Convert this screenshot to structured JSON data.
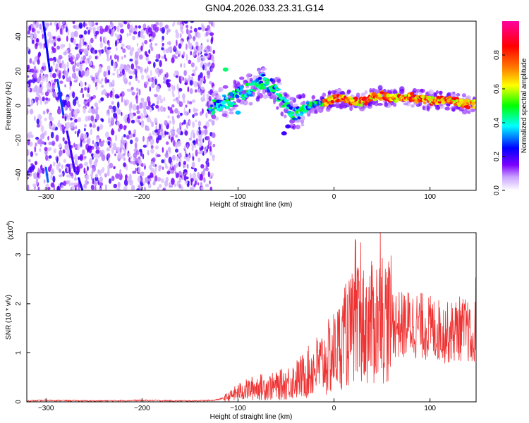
{
  "figure_title": "GN04.2026.033.23.31.G14",
  "chart_data": [
    {
      "type": "heatmap",
      "xlabel": "Height of straight line (km)",
      "ylabel": "Frequency (Hz)",
      "xlim": [
        -320,
        148
      ],
      "ylim": [
        -49,
        49
      ],
      "xticks": [
        -300,
        -200,
        -100,
        0,
        100
      ],
      "yticks": [
        -40,
        -20,
        0,
        20,
        40
      ],
      "grid": false,
      "noise_region_x": [
        -320,
        -125
      ],
      "main_trace": {
        "x": [
          -130,
          -120,
          -110,
          -100,
          -90,
          -80,
          -75,
          -70,
          -65,
          -60,
          -55,
          -50,
          -45,
          -40,
          -35,
          -30,
          -20,
          -10,
          0,
          10,
          20,
          30,
          40,
          50,
          60,
          70,
          80,
          90,
          100,
          110,
          120,
          130,
          140,
          148
        ],
        "y": [
          -2,
          1,
          3,
          6,
          9,
          12,
          14,
          14,
          11,
          8,
          4,
          0,
          -3,
          -4,
          -3,
          -1,
          1,
          2,
          4,
          4,
          3,
          2,
          5,
          6,
          4,
          5,
          5,
          4,
          3,
          3,
          3,
          2,
          1,
          1
        ]
      },
      "colorbar": {
        "label": "Normalized spectral amplitude",
        "ticks": [
          0.0,
          0.2,
          0.4,
          0.6,
          0.8
        ],
        "range": [
          0,
          1
        ],
        "colors": [
          "#ffffff",
          "#7d00ff",
          "#0000ff",
          "#00ffff",
          "#00ff00",
          "#ffff00",
          "#ff8000",
          "#ff0000",
          "#ff00a0"
        ]
      }
    },
    {
      "type": "line",
      "xlabel": "Height of straight line (km)",
      "ylabel": "SNR (10 * v/v)",
      "multiplier_label": "(x10",
      "multiplier_exponent": "4",
      "multiplier_close": ")",
      "xlim": [
        -320,
        148
      ],
      "ylim": [
        0,
        3.45
      ],
      "xticks": [
        -300,
        -200,
        -100,
        0,
        100
      ],
      "yticks": [
        0,
        1,
        2,
        3
      ],
      "grid": false,
      "series_color": "#ee3333",
      "series": [
        {
          "x": [
            -320,
            -300,
            -250,
            -200,
            -150,
            -125,
            -110,
            -100,
            -90,
            -80,
            -70,
            -60,
            -50,
            -40,
            -30,
            -20,
            -10,
            0,
            10,
            20,
            30,
            40,
            50,
            60,
            70,
            80,
            90,
            100,
            110,
            120,
            130,
            140,
            145,
            148
          ],
          "y": [
            0.02,
            0.03,
            0.02,
            0.03,
            0.02,
            0.03,
            0.1,
            0.2,
            0.25,
            0.3,
            0.3,
            0.32,
            0.38,
            0.45,
            0.55,
            0.7,
            0.8,
            1.0,
            1.3,
            1.5,
            1.55,
            1.6,
            1.75,
            1.65,
            1.55,
            1.6,
            1.55,
            1.5,
            1.45,
            1.4,
            1.5,
            1.45,
            1.0,
            1.9
          ]
        }
      ]
    }
  ]
}
